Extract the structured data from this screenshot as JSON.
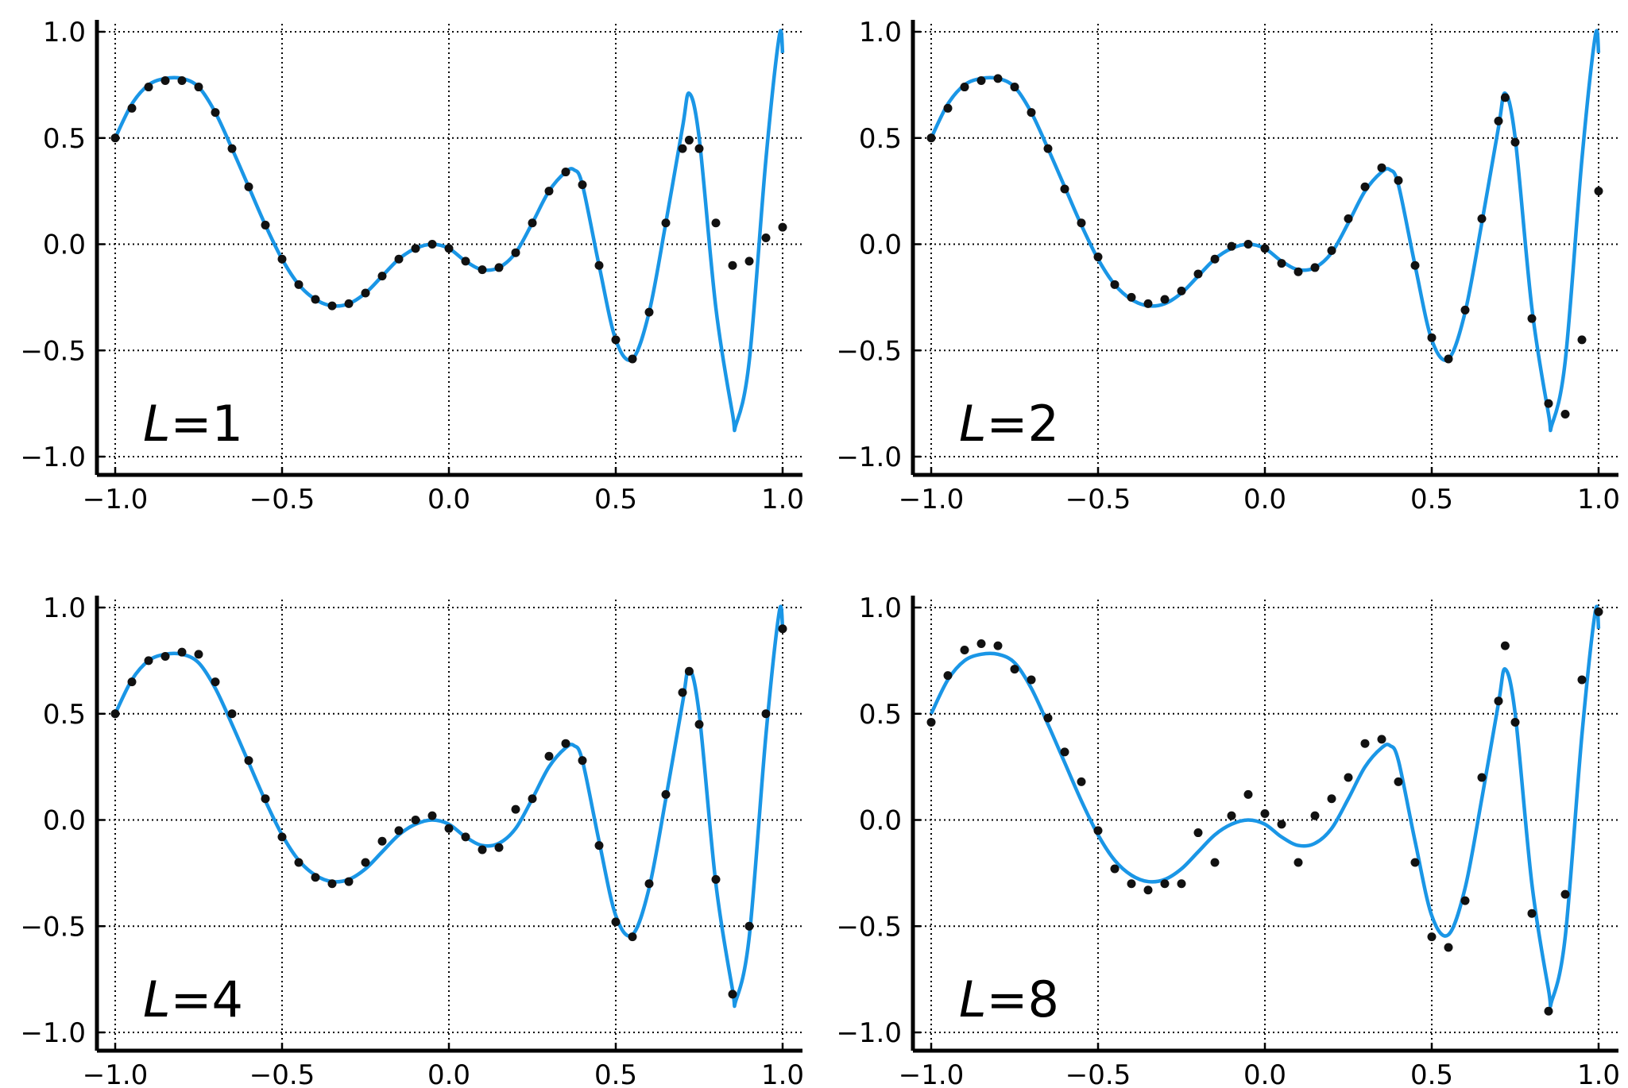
{
  "colors": {
    "curve": "#1a96e6",
    "points": "#111111",
    "axes": "#000000"
  },
  "chart_data": [
    {
      "type": "line",
      "label_var": "L",
      "label_value": "=1",
      "xlim": [
        -1.0,
        1.0
      ],
      "ylim": [
        -1.0,
        1.0
      ],
      "x_ticks": [
        "−1.0",
        "−0.5",
        "0.0",
        "0.5",
        "1.0"
      ],
      "y_ticks": [
        "−1.0",
        "−0.5",
        "0.0",
        "0.5",
        "1.0"
      ],
      "grid": true,
      "series": [
        {
          "kind": "line",
          "x": [
            -1.0,
            -0.95,
            -0.9,
            -0.85,
            -0.8,
            -0.75,
            -0.7,
            -0.65,
            -0.6,
            -0.55,
            -0.5,
            -0.45,
            -0.4,
            -0.35,
            -0.3,
            -0.25,
            -0.2,
            -0.15,
            -0.1,
            -0.05,
            0.0,
            0.05,
            0.1,
            0.15,
            0.2,
            0.25,
            0.3,
            0.35,
            0.375,
            0.4,
            0.45,
            0.5,
            0.55,
            0.6,
            0.65,
            0.7,
            0.72,
            0.75,
            0.8,
            0.85,
            0.86,
            0.9,
            0.95,
            0.99,
            1.0
          ],
          "y": [
            0.5,
            0.66,
            0.75,
            0.78,
            0.78,
            0.74,
            0.62,
            0.45,
            0.27,
            0.09,
            -0.07,
            -0.19,
            -0.26,
            -0.29,
            -0.28,
            -0.23,
            -0.15,
            -0.07,
            -0.02,
            0.0,
            -0.02,
            -0.08,
            -0.12,
            -0.11,
            -0.04,
            0.1,
            0.25,
            0.34,
            0.35,
            0.28,
            -0.1,
            -0.45,
            -0.54,
            -0.32,
            0.1,
            0.55,
            0.71,
            0.5,
            -0.3,
            -0.8,
            -0.85,
            -0.55,
            0.4,
            0.98,
            0.9
          ]
        },
        {
          "kind": "scatter",
          "x": [
            -1.0,
            -0.95,
            -0.9,
            -0.85,
            -0.8,
            -0.75,
            -0.7,
            -0.65,
            -0.6,
            -0.55,
            -0.5,
            -0.45,
            -0.4,
            -0.35,
            -0.3,
            -0.25,
            -0.2,
            -0.15,
            -0.1,
            -0.05,
            0.0,
            0.05,
            0.1,
            0.15,
            0.2,
            0.25,
            0.3,
            0.35,
            0.4,
            0.45,
            0.5,
            0.55,
            0.6,
            0.65,
            0.7,
            0.72,
            0.75,
            0.8,
            0.85,
            0.9,
            0.95,
            1.0
          ],
          "y": [
            0.5,
            0.64,
            0.74,
            0.77,
            0.77,
            0.74,
            0.62,
            0.45,
            0.27,
            0.09,
            -0.07,
            -0.19,
            -0.26,
            -0.29,
            -0.28,
            -0.23,
            -0.15,
            -0.07,
            -0.02,
            0.0,
            -0.02,
            -0.08,
            -0.12,
            -0.11,
            -0.04,
            0.1,
            0.25,
            0.34,
            0.28,
            -0.1,
            -0.45,
            -0.54,
            -0.32,
            0.1,
            0.45,
            0.49,
            0.45,
            0.1,
            -0.1,
            -0.08,
            0.03,
            0.08
          ]
        }
      ]
    },
    {
      "type": "line",
      "label_var": "L",
      "label_value": "=2",
      "xlim": [
        -1.0,
        1.0
      ],
      "ylim": [
        -1.0,
        1.0
      ],
      "x_ticks": [
        "−1.0",
        "−0.5",
        "0.0",
        "0.5",
        "1.0"
      ],
      "y_ticks": [
        "−1.0",
        "−0.5",
        "0.0",
        "0.5",
        "1.0"
      ],
      "grid": true,
      "series": [
        {
          "kind": "line",
          "x": [
            -1.0,
            -0.95,
            -0.9,
            -0.85,
            -0.8,
            -0.75,
            -0.7,
            -0.65,
            -0.6,
            -0.55,
            -0.5,
            -0.45,
            -0.4,
            -0.35,
            -0.3,
            -0.25,
            -0.2,
            -0.15,
            -0.1,
            -0.05,
            0.0,
            0.05,
            0.1,
            0.15,
            0.2,
            0.25,
            0.3,
            0.35,
            0.375,
            0.4,
            0.45,
            0.5,
            0.55,
            0.6,
            0.65,
            0.7,
            0.72,
            0.75,
            0.8,
            0.85,
            0.86,
            0.9,
            0.95,
            0.99,
            1.0
          ],
          "y": [
            0.5,
            0.66,
            0.75,
            0.78,
            0.78,
            0.74,
            0.62,
            0.45,
            0.27,
            0.09,
            -0.07,
            -0.19,
            -0.26,
            -0.29,
            -0.28,
            -0.23,
            -0.15,
            -0.07,
            -0.02,
            0.0,
            -0.02,
            -0.08,
            -0.12,
            -0.11,
            -0.04,
            0.1,
            0.25,
            0.34,
            0.35,
            0.28,
            -0.1,
            -0.45,
            -0.54,
            -0.32,
            0.1,
            0.55,
            0.71,
            0.5,
            -0.3,
            -0.8,
            -0.85,
            -0.55,
            0.4,
            0.98,
            0.9
          ]
        },
        {
          "kind": "scatter",
          "x": [
            -1.0,
            -0.95,
            -0.9,
            -0.85,
            -0.8,
            -0.75,
            -0.7,
            -0.65,
            -0.6,
            -0.55,
            -0.5,
            -0.45,
            -0.4,
            -0.35,
            -0.3,
            -0.25,
            -0.2,
            -0.15,
            -0.1,
            -0.05,
            0.0,
            0.05,
            0.1,
            0.15,
            0.2,
            0.25,
            0.3,
            0.35,
            0.4,
            0.45,
            0.5,
            0.55,
            0.6,
            0.65,
            0.7,
            0.72,
            0.75,
            0.8,
            0.85,
            0.9,
            0.95,
            1.0
          ],
          "y": [
            0.5,
            0.64,
            0.74,
            0.77,
            0.78,
            0.74,
            0.62,
            0.45,
            0.26,
            0.1,
            -0.06,
            -0.19,
            -0.25,
            -0.28,
            -0.26,
            -0.22,
            -0.14,
            -0.07,
            -0.01,
            0.0,
            -0.02,
            -0.09,
            -0.13,
            -0.11,
            -0.03,
            0.12,
            0.27,
            0.36,
            0.3,
            -0.1,
            -0.44,
            -0.54,
            -0.31,
            0.12,
            0.58,
            0.69,
            0.48,
            -0.35,
            -0.75,
            -0.8,
            -0.45,
            0.25
          ]
        }
      ]
    },
    {
      "type": "line",
      "label_var": "L",
      "label_value": "=4",
      "xlim": [
        -1.0,
        1.0
      ],
      "ylim": [
        -1.0,
        1.0
      ],
      "x_ticks": [
        "−1.0",
        "−0.5",
        "0.0",
        "0.5",
        "1.0"
      ],
      "y_ticks": [
        "−1.0",
        "−0.5",
        "0.0",
        "0.5",
        "1.0"
      ],
      "grid": true,
      "series": [
        {
          "kind": "line",
          "x": [
            -1.0,
            -0.95,
            -0.9,
            -0.85,
            -0.8,
            -0.75,
            -0.7,
            -0.65,
            -0.6,
            -0.55,
            -0.5,
            -0.45,
            -0.4,
            -0.35,
            -0.3,
            -0.25,
            -0.2,
            -0.15,
            -0.1,
            -0.05,
            0.0,
            0.05,
            0.1,
            0.15,
            0.2,
            0.25,
            0.3,
            0.35,
            0.375,
            0.4,
            0.45,
            0.5,
            0.55,
            0.6,
            0.65,
            0.7,
            0.72,
            0.75,
            0.8,
            0.85,
            0.86,
            0.9,
            0.95,
            0.99,
            1.0
          ],
          "y": [
            0.5,
            0.66,
            0.75,
            0.78,
            0.78,
            0.74,
            0.62,
            0.45,
            0.27,
            0.09,
            -0.07,
            -0.19,
            -0.26,
            -0.29,
            -0.28,
            -0.23,
            -0.15,
            -0.07,
            -0.02,
            0.0,
            -0.02,
            -0.08,
            -0.12,
            -0.11,
            -0.04,
            0.1,
            0.25,
            0.34,
            0.35,
            0.28,
            -0.1,
            -0.45,
            -0.54,
            -0.32,
            0.1,
            0.55,
            0.71,
            0.5,
            -0.3,
            -0.8,
            -0.85,
            -0.55,
            0.4,
            0.98,
            0.9
          ]
        },
        {
          "kind": "scatter",
          "x": [
            -1.0,
            -0.95,
            -0.9,
            -0.85,
            -0.8,
            -0.75,
            -0.7,
            -0.65,
            -0.6,
            -0.55,
            -0.5,
            -0.45,
            -0.4,
            -0.35,
            -0.3,
            -0.25,
            -0.2,
            -0.15,
            -0.1,
            -0.05,
            0.0,
            0.05,
            0.1,
            0.15,
            0.2,
            0.25,
            0.3,
            0.35,
            0.4,
            0.45,
            0.5,
            0.55,
            0.6,
            0.65,
            0.7,
            0.72,
            0.75,
            0.8,
            0.85,
            0.9,
            0.95,
            1.0
          ],
          "y": [
            0.5,
            0.65,
            0.75,
            0.77,
            0.79,
            0.78,
            0.65,
            0.5,
            0.28,
            0.1,
            -0.08,
            -0.2,
            -0.27,
            -0.3,
            -0.29,
            -0.2,
            -0.1,
            -0.05,
            0.0,
            0.02,
            -0.04,
            -0.08,
            -0.14,
            -0.13,
            0.05,
            0.1,
            0.3,
            0.36,
            0.28,
            -0.12,
            -0.48,
            -0.55,
            -0.3,
            0.12,
            0.6,
            0.7,
            0.45,
            -0.28,
            -0.82,
            -0.5,
            0.5,
            0.9
          ]
        }
      ]
    },
    {
      "type": "line",
      "label_var": "L",
      "label_value": "=8",
      "xlim": [
        -1.0,
        1.0
      ],
      "ylim": [
        -1.0,
        1.0
      ],
      "x_ticks": [
        "−1.0",
        "−0.5",
        "0.0",
        "0.5",
        "1.0"
      ],
      "y_ticks": [
        "−1.0",
        "−0.5",
        "0.0",
        "0.5",
        "1.0"
      ],
      "grid": true,
      "series": [
        {
          "kind": "line",
          "x": [
            -1.0,
            -0.95,
            -0.9,
            -0.85,
            -0.8,
            -0.75,
            -0.7,
            -0.65,
            -0.6,
            -0.55,
            -0.5,
            -0.45,
            -0.4,
            -0.35,
            -0.3,
            -0.25,
            -0.2,
            -0.15,
            -0.1,
            -0.05,
            0.0,
            0.05,
            0.1,
            0.15,
            0.2,
            0.25,
            0.3,
            0.35,
            0.375,
            0.4,
            0.45,
            0.5,
            0.55,
            0.6,
            0.65,
            0.7,
            0.72,
            0.75,
            0.8,
            0.85,
            0.86,
            0.9,
            0.95,
            0.99,
            1.0
          ],
          "y": [
            0.5,
            0.66,
            0.75,
            0.78,
            0.78,
            0.74,
            0.62,
            0.45,
            0.27,
            0.09,
            -0.07,
            -0.19,
            -0.26,
            -0.29,
            -0.28,
            -0.23,
            -0.15,
            -0.07,
            -0.02,
            0.0,
            -0.02,
            -0.08,
            -0.12,
            -0.11,
            -0.04,
            0.1,
            0.25,
            0.34,
            0.35,
            0.28,
            -0.1,
            -0.45,
            -0.54,
            -0.32,
            0.1,
            0.55,
            0.71,
            0.5,
            -0.3,
            -0.8,
            -0.85,
            -0.55,
            0.4,
            0.98,
            0.9
          ]
        },
        {
          "kind": "scatter",
          "x": [
            -1.0,
            -0.95,
            -0.9,
            -0.85,
            -0.8,
            -0.75,
            -0.7,
            -0.65,
            -0.6,
            -0.55,
            -0.5,
            -0.45,
            -0.4,
            -0.35,
            -0.3,
            -0.25,
            -0.2,
            -0.15,
            -0.1,
            -0.05,
            0.0,
            0.05,
            0.1,
            0.15,
            0.2,
            0.25,
            0.3,
            0.35,
            0.4,
            0.45,
            0.5,
            0.55,
            0.6,
            0.65,
            0.7,
            0.72,
            0.75,
            0.8,
            0.85,
            0.9,
            0.95,
            1.0
          ],
          "y": [
            0.46,
            0.68,
            0.8,
            0.83,
            0.82,
            0.71,
            0.66,
            0.48,
            0.32,
            0.18,
            -0.05,
            -0.23,
            -0.3,
            -0.33,
            -0.3,
            -0.3,
            -0.06,
            -0.2,
            0.02,
            0.12,
            0.03,
            -0.02,
            -0.2,
            0.02,
            0.1,
            0.2,
            0.36,
            0.38,
            0.18,
            -0.2,
            -0.55,
            -0.6,
            -0.38,
            0.2,
            0.56,
            0.82,
            0.46,
            -0.44,
            -0.9,
            -0.35,
            0.66,
            0.98
          ]
        }
      ]
    }
  ]
}
